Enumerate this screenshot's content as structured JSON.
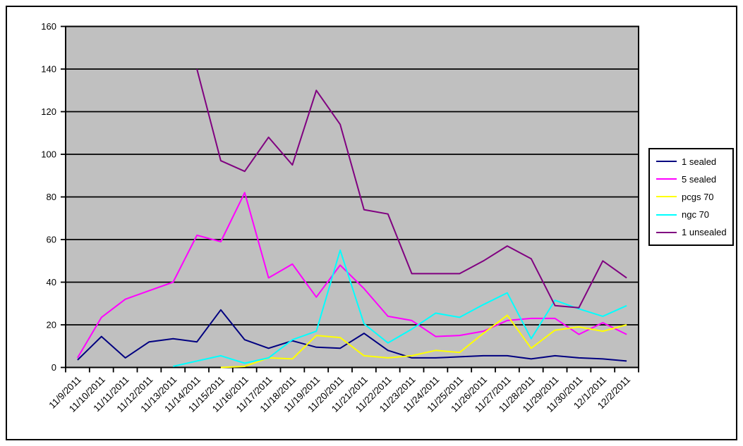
{
  "chart_data": {
    "type": "line",
    "title": "",
    "xlabel": "",
    "ylabel": "",
    "ylim": [
      0,
      160
    ],
    "y_step": 20,
    "grid": true,
    "legend_position": "right",
    "plot_bg": "#C0C0C0",
    "axis_color": "#000000",
    "categories": [
      "11/9/2011",
      "11/10/2011",
      "11/11/2011",
      "11/12/2011",
      "11/13/2011",
      "11/14/2011",
      "11/15/2011",
      "11/16/2011",
      "11/17/2011",
      "11/18/2011",
      "11/19/2011",
      "11/20/2011",
      "11/21/2011",
      "11/22/2011",
      "11/23/2011",
      "11/24/2011",
      "11/25/2011",
      "11/26/2011",
      "11/27/2011",
      "11/28/2011",
      "11/29/2011",
      "11/30/2011",
      "12/1/2011",
      "12/2/2011"
    ],
    "series": [
      {
        "name": "1 sealed",
        "color": "#000080",
        "values": [
          3.5,
          14.5,
          4.5,
          12,
          13.5,
          12,
          27,
          13,
          9,
          12.5,
          9.5,
          9,
          16,
          8,
          4.5,
          4.5,
          5,
          5.5,
          5.5,
          4,
          5.5,
          4.5,
          4,
          3
        ]
      },
      {
        "name": "5 sealed",
        "color": "#FF00FF",
        "values": [
          4.5,
          23.5,
          32,
          36,
          40,
          62,
          59,
          82,
          42,
          48.5,
          33,
          48,
          37,
          24,
          22,
          14.5,
          15,
          17,
          22,
          23,
          23,
          15.5,
          21,
          15.5
        ]
      },
      {
        "name": "pcgs 70",
        "color": "#FFFF00",
        "values": [
          null,
          null,
          null,
          null,
          null,
          null,
          0,
          0.5,
          4.5,
          4,
          15,
          14,
          5.5,
          4.5,
          5.5,
          8,
          7,
          16,
          24.5,
          9,
          17.5,
          19,
          17,
          20
        ]
      },
      {
        "name": "ngc 70",
        "color": "#00FFFF",
        "values": [
          null,
          null,
          null,
          null,
          0.5,
          3,
          5.5,
          2,
          4.5,
          13,
          17,
          55,
          20.5,
          11.5,
          18,
          25.5,
          23.5,
          29.5,
          35,
          13.5,
          31.5,
          27.5,
          24,
          29
        ]
      },
      {
        "name": "1 unsealed",
        "color": "#800080",
        "values": [
          null,
          null,
          null,
          null,
          null,
          140,
          97,
          92,
          108,
          95,
          130,
          114,
          74,
          72,
          44,
          44,
          44,
          50,
          57,
          51,
          29,
          28,
          50,
          42
        ]
      }
    ]
  }
}
